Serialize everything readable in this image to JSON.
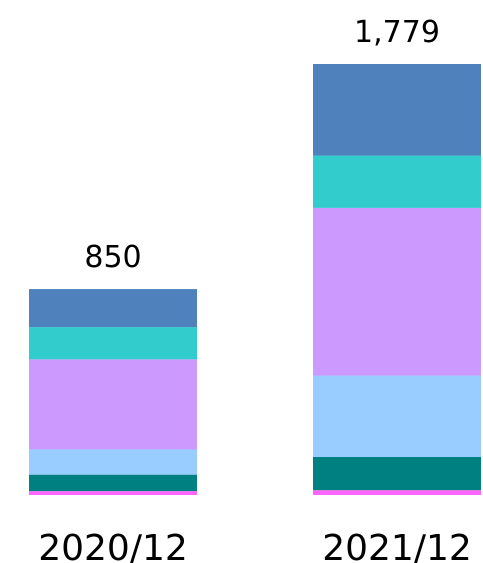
{
  "chart_data": {
    "type": "bar",
    "stacked": true,
    "categories": [
      "2020/12",
      "2021/12"
    ],
    "totals": [
      "850",
      "1,779"
    ],
    "series": [
      {
        "values": [
          16,
          20
        ],
        "color": "#FF66FF"
      },
      {
        "values": [
          68,
          137
        ],
        "color": "#008080"
      },
      {
        "values": [
          104,
          336
        ],
        "color": "#99CCFF"
      },
      {
        "values": [
          372,
          692
        ],
        "color": "#CC99FF"
      },
      {
        "values": [
          133,
          216
        ],
        "color": "#33CCCC"
      },
      {
        "values": [
          157,
          378
        ],
        "color": "#4F81BD"
      }
    ],
    "ylim": [
      0,
      1779
    ],
    "grid": false,
    "legend": "none"
  }
}
